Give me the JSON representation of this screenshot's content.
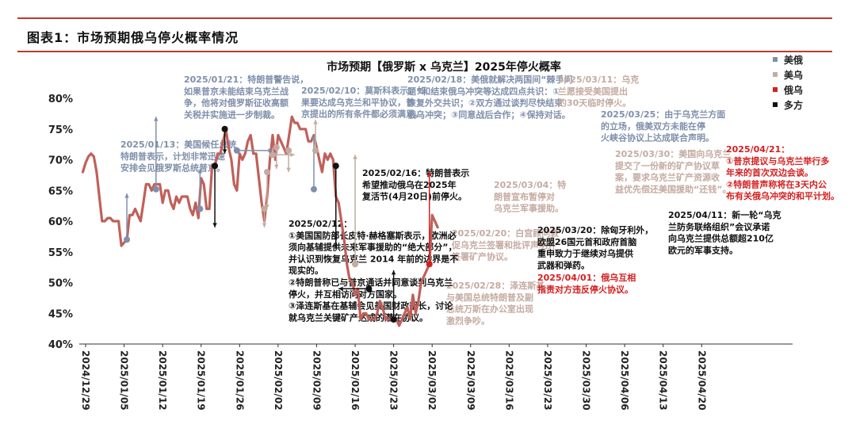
{
  "header": {
    "figure_title": "图表1：市场预期俄乌停火概率情况"
  },
  "chart_data": {
    "type": "line",
    "title": "市场预期【俄罗斯 x 乌克兰】2025年停火概率",
    "xlabel": "",
    "ylabel": "",
    "ylim": [
      40,
      82
    ],
    "y_ticks": [
      "40%",
      "45%",
      "50%",
      "55%",
      "60%",
      "65%",
      "70%",
      "75%",
      "80%"
    ],
    "x_tick_labels": [
      "2024/12/29",
      "2025/01/05",
      "2025/01/12",
      "2025/01/19",
      "2025/01/26",
      "2025/02/02",
      "2025/02/09",
      "2025/02/16",
      "2025/02/23",
      "2025/03/02",
      "2025/03/09",
      "2025/03/16",
      "2025/03/23",
      "2025/03/30",
      "2025/04/06",
      "2025/04/13",
      "2025/04/20"
    ],
    "grid": false,
    "legend_position": "right",
    "line_color": "#c0605a",
    "series": [
      {
        "values": [
          [
            -0.5,
            68
          ],
          [
            0,
            69.5
          ],
          [
            0.5,
            70.5
          ],
          [
            1,
            71
          ],
          [
            1.5,
            70.5
          ],
          [
            2,
            68
          ],
          [
            2.5,
            64
          ],
          [
            3,
            60
          ],
          [
            3.5,
            60
          ],
          [
            4,
            60.5
          ],
          [
            4.5,
            60.5
          ],
          [
            5,
            60
          ],
          [
            5.5,
            60
          ],
          [
            6,
            60
          ],
          [
            6.5,
            56
          ],
          [
            7,
            56.5
          ],
          [
            7.5,
            57
          ],
          [
            8,
            61
          ],
          [
            8.5,
            61
          ],
          [
            9,
            62
          ],
          [
            9.5,
            61
          ],
          [
            10,
            60
          ],
          [
            10.5,
            63
          ],
          [
            11,
            66
          ],
          [
            11.5,
            66
          ],
          [
            12,
            65
          ],
          [
            12.5,
            66
          ],
          [
            13,
            66
          ],
          [
            13.5,
            66
          ],
          [
            14,
            63
          ],
          [
            14.5,
            65
          ],
          [
            15,
            65
          ],
          [
            15.5,
            63
          ],
          [
            16,
            62
          ],
          [
            16.5,
            64
          ],
          [
            17,
            63
          ],
          [
            17.5,
            64
          ],
          [
            18,
            64
          ],
          [
            18.5,
            64
          ],
          [
            19,
            62
          ],
          [
            19.5,
            61
          ],
          [
            20,
            63
          ],
          [
            20.5,
            60.5
          ],
          [
            21,
            67
          ],
          [
            21.5,
            66
          ],
          [
            22,
            62
          ],
          [
            22.5,
            62
          ],
          [
            23,
            69
          ],
          [
            23.5,
            69
          ],
          [
            24,
            71
          ],
          [
            24.5,
            71
          ],
          [
            25,
            73
          ],
          [
            25.5,
            75
          ],
          [
            26,
            72
          ],
          [
            26.5,
            70
          ],
          [
            27,
            66
          ],
          [
            27.5,
            65
          ],
          [
            28,
            71
          ],
          [
            28.5,
            70
          ],
          [
            29,
            71
          ],
          [
            29.5,
            73
          ],
          [
            30,
            74
          ],
          [
            30.5,
            71
          ],
          [
            31,
            71
          ],
          [
            31.5,
            67
          ],
          [
            32,
            63
          ],
          [
            32.5,
            60
          ],
          [
            33,
            64
          ],
          [
            33.5,
            70
          ],
          [
            34,
            74
          ],
          [
            34.5,
            70
          ],
          [
            35,
            74
          ],
          [
            35.5,
            73
          ],
          [
            36,
            72
          ],
          [
            36.5,
            71
          ],
          [
            37,
            74
          ],
          [
            37.5,
            77
          ],
          [
            38,
            76
          ],
          [
            38.5,
            76
          ],
          [
            39,
            75
          ],
          [
            39.5,
            75
          ],
          [
            40,
            75
          ],
          [
            40.5,
            73
          ],
          [
            41,
            73
          ],
          [
            41.5,
            74
          ],
          [
            42,
            72
          ],
          [
            42.5,
            70
          ],
          [
            43,
            68
          ],
          [
            43.5,
            71
          ],
          [
            44,
            70
          ],
          [
            44.5,
            71
          ],
          [
            45,
            70
          ],
          [
            45.5,
            64
          ],
          [
            46,
            63
          ],
          [
            46.5,
            60
          ],
          [
            47,
            57
          ],
          [
            47.5,
            53
          ],
          [
            48,
            50.5
          ],
          [
            48.5,
            50
          ],
          [
            49,
            48
          ],
          [
            49.5,
            49
          ],
          [
            50,
            44
          ],
          [
            50.5,
            45
          ],
          [
            51,
            45
          ],
          [
            51.5,
            44
          ],
          [
            52,
            44
          ],
          [
            52.5,
            44
          ],
          [
            53,
            45
          ],
          [
            53.5,
            47
          ],
          [
            54,
            46
          ],
          [
            54.5,
            44
          ],
          [
            55,
            44
          ],
          [
            55.5,
            44
          ],
          [
            56,
            44
          ],
          [
            56.5,
            44
          ],
          [
            57,
            43
          ],
          [
            57.5,
            44
          ],
          [
            58,
            45
          ],
          [
            58.5,
            46
          ],
          [
            59,
            44
          ],
          [
            59.5,
            48
          ],
          [
            60,
            45
          ],
          [
            60.5,
            47
          ],
          [
            61,
            50
          ],
          [
            61.5,
            51
          ],
          [
            62,
            52
          ],
          [
            62.5,
            53
          ],
          [
            63,
            61
          ],
          [
            63.5,
            60
          ],
          [
            64,
            59
          ]
        ]
      }
    ],
    "legend": [
      {
        "name": "美俄",
        "color": "#7f8fab"
      },
      {
        "name": "美乌",
        "color": "#c4aba1"
      },
      {
        "name": "俄乌",
        "color": "#d42020"
      },
      {
        "name": "多方",
        "color": "#111111"
      }
    ],
    "markers": [
      {
        "category": "美俄",
        "x": 7.5,
        "y": 57,
        "end_y": 64.5
      },
      {
        "category": "美俄",
        "x": 12.8,
        "y": 65.2,
        "end_y": 77
      },
      {
        "category": "美俄",
        "x": 20.8,
        "y": 62,
        "end_y": 68.5
      },
      {
        "category": "美俄",
        "x": 27.5,
        "y": 71.5,
        "h_to_x": 34
      },
      {
        "category": "美俄",
        "x": 41.5,
        "y": 65.2,
        "end_y": 74
      },
      {
        "category": "美乌",
        "x": 33,
        "y": 68,
        "end_y": 62
      },
      {
        "category": "美乌",
        "x": 34,
        "y": 70.8,
        "h_to_x": 38
      },
      {
        "category": "美乌",
        "x": 41.8,
        "y": 71.5,
        "end_y": 76.5
      },
      {
        "category": "美乌",
        "x": 49,
        "y": 53,
        "end_y": 70.8
      },
      {
        "category": "美乌",
        "x": 34.7,
        "y": 72,
        "end_y": 68.5
      },
      {
        "category": "美乌",
        "x": 32.5,
        "y": 62,
        "end_y": 59
      },
      {
        "category": "美乌",
        "x": 36.9,
        "y": 71.5,
        "end_y": 68
      },
      {
        "category": "俄乌",
        "x": 62.5,
        "y": 53,
        "end_y": 68
      },
      {
        "category": "多方",
        "x": 25.3,
        "y": 75,
        "end_y": 71
      },
      {
        "category": "多方",
        "x": 23.5,
        "y": 69,
        "end_y": 59
      },
      {
        "category": "多方",
        "x": 45.5,
        "y": 69,
        "end_y": 55.5
      },
      {
        "category": "多方",
        "x": 51.5,
        "y": 49,
        "h_to_x": 46
      },
      {
        "category": "多方",
        "x": 56,
        "y": 44,
        "end_y": 52
      }
    ],
    "annotations": [
      {
        "category": "美俄",
        "lines": [
          "2025/01/13：美国候任总统",
          "特朗普表示，计划非常迅速",
          "安排会见俄罗斯总统普京。"
        ]
      },
      {
        "category": "美俄",
        "lines": [
          "2025/01/21：特朗普警告说，",
          "如果普京未能结束乌克兰战",
          "争，他将对俄罗斯征收高额",
          "关税并实施进一步制裁。"
        ]
      },
      {
        "category": "美俄",
        "lines": [
          "2025/02/10：莫斯科表示，如",
          "果要达成乌克兰和平协议，普",
          "京提出的所有条件都必须满足。"
        ]
      },
      {
        "category": "美俄",
        "lines": [
          "2025/02/18：美俄就解决两国间“棘手问",
          "题”和结束俄乌冲突等达成四点共识：①",
          "恢复外交共识；②双方通过谈判尽快结束",
          "俄乌冲突；③同意战后合作；④保持对话。"
        ]
      },
      {
        "category": "美俄",
        "lines": [
          "2025/03/25：由于乌克兰方面",
          "的立场，俄美双方未能在停",
          "火峡谷协议上达成联合声明。"
        ]
      },
      {
        "category": "美乌",
        "lines": [
          "2025/03/11：乌克",
          "兰愿接受美国提出",
          "的30天临时停火。"
        ]
      },
      {
        "category": "美乌",
        "lines": [
          "2025/03/04：特",
          "朗普宣布暂停对",
          "乌克兰军事援助。"
        ]
      },
      {
        "category": "美乌",
        "lines": [
          "2025/02/20：白宫顾问敦",
          "促乌克兰签署和批评声明并",
          "签署矿产协议。"
        ]
      },
      {
        "category": "美乌",
        "lines": [
          "2025/02/28：泽连斯基",
          "与美国总统特朗普及副",
          "总统万斯在办公室出现",
          "激烈争吵。"
        ]
      },
      {
        "category": "美乌",
        "lines": [
          "2025/03/30：美国向乌克兰",
          "提交了一份新的矿产协议草",
          "案，要求乌克兰矿产资源收",
          "益优先偿还美国援助“还钱”。"
        ]
      },
      {
        "category": "俄乌",
        "lines": [
          "2025/04/21：",
          "①普京提议与乌克兰举行多",
          "年来的首次双边会谈。",
          "②特朗普声称将在3天内公",
          "布有关俄乌冲突的和平计划。"
        ]
      },
      {
        "category": "俄乌",
        "lines": [
          "2025/04/01：俄乌互相",
          "指责对方违反停火协议。"
        ]
      },
      {
        "category": "多方",
        "lines": [
          "2025/02/16：特朗普表示",
          "希望推动俄乌在2025年",
          "复活节(4月20日)前停火。"
        ]
      },
      {
        "category": "多方",
        "lines": [
          "2025/02/12：",
          "①美国国防部长皮特·赫格塞斯表示，欧洲必",
          "须向基辅提供未来军事援助的“绝大部分”，",
          "并认识到恢复乌克兰 2014 年前的边界是不",
          "现实的。",
          "②特朗普称已与普京通话并同意谈判乌克兰",
          "停火，并互相访问对方国家。",
          "③泽连斯基在基辅会见美国财政部长，讨论",
          "就乌克兰关键矿产达成的潜在协议。"
        ]
      },
      {
        "category": "多方",
        "lines": [
          "2025/03/20：除匈牙利外，",
          "欧盟26国元首和政府首脑",
          "重申致力于继续对乌提供",
          "武器和弹药。"
        ]
      },
      {
        "category": "多方",
        "lines": [
          "2025/04/11：新一轮“乌克",
          "兰防务联络组织”会议承诺",
          "向乌克兰提供总额超210亿",
          "欧元的军事支持。"
        ]
      }
    ]
  }
}
